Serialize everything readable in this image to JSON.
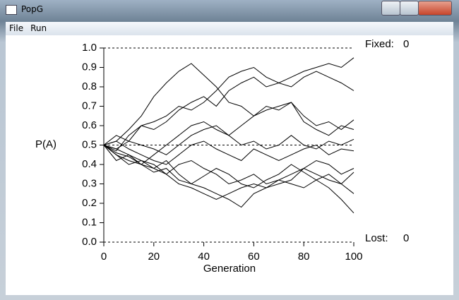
{
  "window": {
    "title": "PopG",
    "menu": [
      "File",
      "Run"
    ]
  },
  "chart_data": {
    "type": "line",
    "x_label": "Generation",
    "y_label": "P(A)",
    "x": [
      0,
      5,
      10,
      15,
      20,
      25,
      30,
      35,
      40,
      45,
      50,
      55,
      60,
      65,
      70,
      75,
      80,
      85,
      90,
      95,
      100
    ],
    "xlim": [
      0,
      100
    ],
    "xticks": [
      0,
      20,
      40,
      60,
      80,
      100
    ],
    "ylim": [
      0,
      1
    ],
    "yticks": [
      {
        "value": 0,
        "label": "0.0"
      },
      0.1,
      0.2,
      0.3,
      0.4,
      0.5,
      0.6,
      0.7,
      0.8,
      0.9,
      {
        "value": 1,
        "label": "1.0"
      }
    ],
    "ref_lines": [
      0,
      0.5,
      1
    ],
    "color": "#000000",
    "annotations": [
      {
        "label": "Fixed:",
        "value": 0
      },
      {
        "label": "Lost:",
        "value": 0
      }
    ],
    "series": [
      {
        "values": [
          0.5,
          0.52,
          0.58,
          0.65,
          0.75,
          0.82,
          0.88,
          0.92,
          0.86,
          0.8,
          0.72,
          0.7,
          0.65,
          0.7,
          0.68,
          0.72,
          0.65,
          0.6,
          0.62,
          0.58,
          0.63
        ]
      },
      {
        "values": [
          0.5,
          0.47,
          0.55,
          0.6,
          0.62,
          0.65,
          0.7,
          0.68,
          0.72,
          0.78,
          0.85,
          0.88,
          0.9,
          0.85,
          0.82,
          0.85,
          0.88,
          0.9,
          0.92,
          0.9,
          0.95
        ]
      },
      {
        "values": [
          0.5,
          0.55,
          0.52,
          0.6,
          0.58,
          0.62,
          0.68,
          0.72,
          0.75,
          0.7,
          0.78,
          0.82,
          0.85,
          0.8,
          0.82,
          0.8,
          0.85,
          0.88,
          0.85,
          0.82,
          0.78
        ]
      },
      {
        "values": [
          0.5,
          0.45,
          0.42,
          0.4,
          0.45,
          0.5,
          0.55,
          0.6,
          0.62,
          0.58,
          0.55,
          0.6,
          0.65,
          0.68,
          0.7,
          0.72,
          0.62,
          0.58,
          0.55,
          0.6,
          0.58
        ]
      },
      {
        "values": [
          0.5,
          0.48,
          0.52,
          0.5,
          0.48,
          0.45,
          0.5,
          0.55,
          0.58,
          0.6,
          0.55,
          0.5,
          0.52,
          0.48,
          0.5,
          0.55,
          0.5,
          0.48,
          0.52,
          0.5,
          0.53
        ]
      },
      {
        "values": [
          0.5,
          0.52,
          0.48,
          0.45,
          0.42,
          0.4,
          0.45,
          0.5,
          0.52,
          0.48,
          0.45,
          0.42,
          0.48,
          0.45,
          0.42,
          0.45,
          0.48,
          0.5,
          0.45,
          0.48,
          0.47
        ]
      },
      {
        "values": [
          0.5,
          0.45,
          0.4,
          0.42,
          0.38,
          0.35,
          0.4,
          0.42,
          0.38,
          0.35,
          0.3,
          0.32,
          0.35,
          0.3,
          0.32,
          0.35,
          0.38,
          0.42,
          0.4,
          0.35,
          0.38
        ]
      },
      {
        "values": [
          0.5,
          0.42,
          0.45,
          0.4,
          0.38,
          0.42,
          0.35,
          0.3,
          0.28,
          0.25,
          0.22,
          0.18,
          0.25,
          0.28,
          0.3,
          0.32,
          0.38,
          0.35,
          0.32,
          0.3,
          0.36
        ]
      },
      {
        "values": [
          0.5,
          0.48,
          0.45,
          0.42,
          0.4,
          0.35,
          0.3,
          0.28,
          0.25,
          0.22,
          0.25,
          0.28,
          0.3,
          0.28,
          0.32,
          0.3,
          0.28,
          0.32,
          0.35,
          0.3,
          0.25
        ]
      },
      {
        "values": [
          0.5,
          0.46,
          0.44,
          0.4,
          0.36,
          0.38,
          0.32,
          0.3,
          0.34,
          0.38,
          0.35,
          0.3,
          0.28,
          0.32,
          0.35,
          0.4,
          0.36,
          0.32,
          0.28,
          0.22,
          0.15
        ]
      }
    ]
  }
}
